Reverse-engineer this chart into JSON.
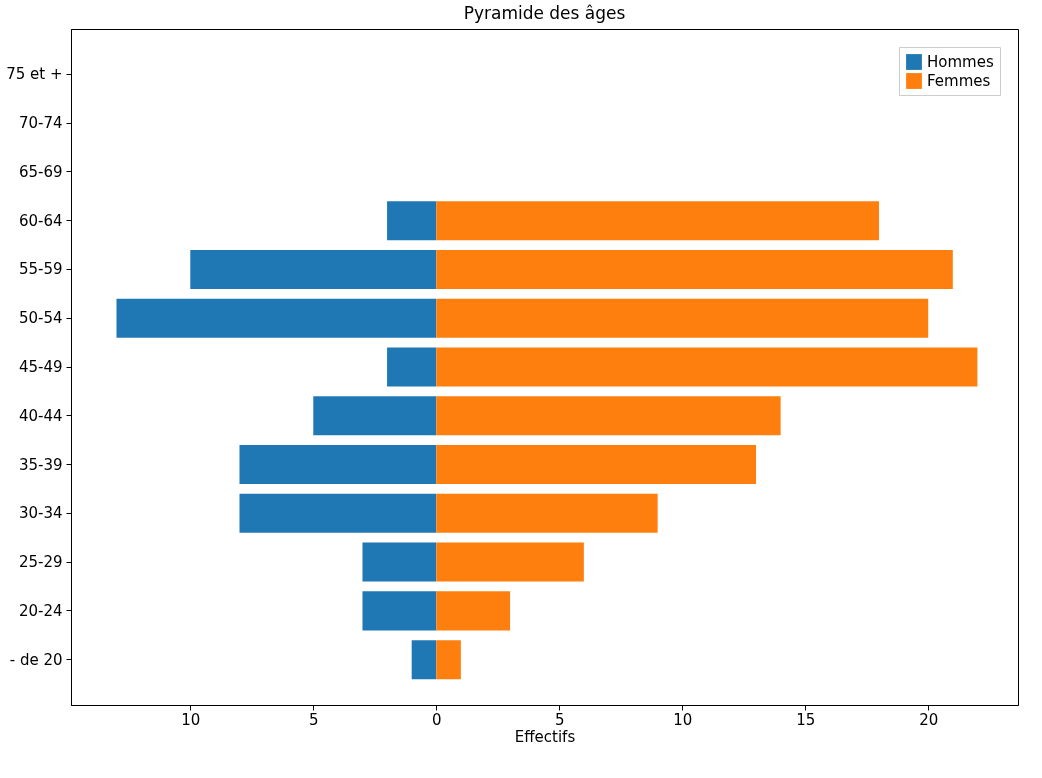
{
  "chart_data": {
    "type": "bar",
    "orientation": "horizontal",
    "title": "Pyramide des âges",
    "xlabel": "Effectifs",
    "categories": [
      "75 et +",
      "70-74",
      "65-69",
      "60-64",
      "55-59",
      "50-54",
      "45-49",
      "40-44",
      "35-39",
      "30-34",
      "25-29",
      "20-24",
      "- de 20"
    ],
    "series": [
      {
        "name": "Hommes",
        "color": "#1f77b4",
        "values": [
          0,
          0,
          0,
          -2,
          -10,
          -13,
          -2,
          -5,
          -8,
          -8,
          -3,
          -3,
          -1
        ]
      },
      {
        "name": "Femmes",
        "color": "#ff7f0e",
        "values": [
          0,
          0,
          0,
          18,
          21,
          20,
          22,
          14,
          13,
          9,
          6,
          3,
          1
        ]
      }
    ],
    "xlim": [
      -14.85,
      23.65
    ],
    "xticks": [
      {
        "value": -10,
        "label": "10"
      },
      {
        "value": -5,
        "label": "5"
      },
      0,
      5,
      10,
      15,
      20
    ],
    "stacked": true,
    "legend": "top right",
    "grid": false
  }
}
